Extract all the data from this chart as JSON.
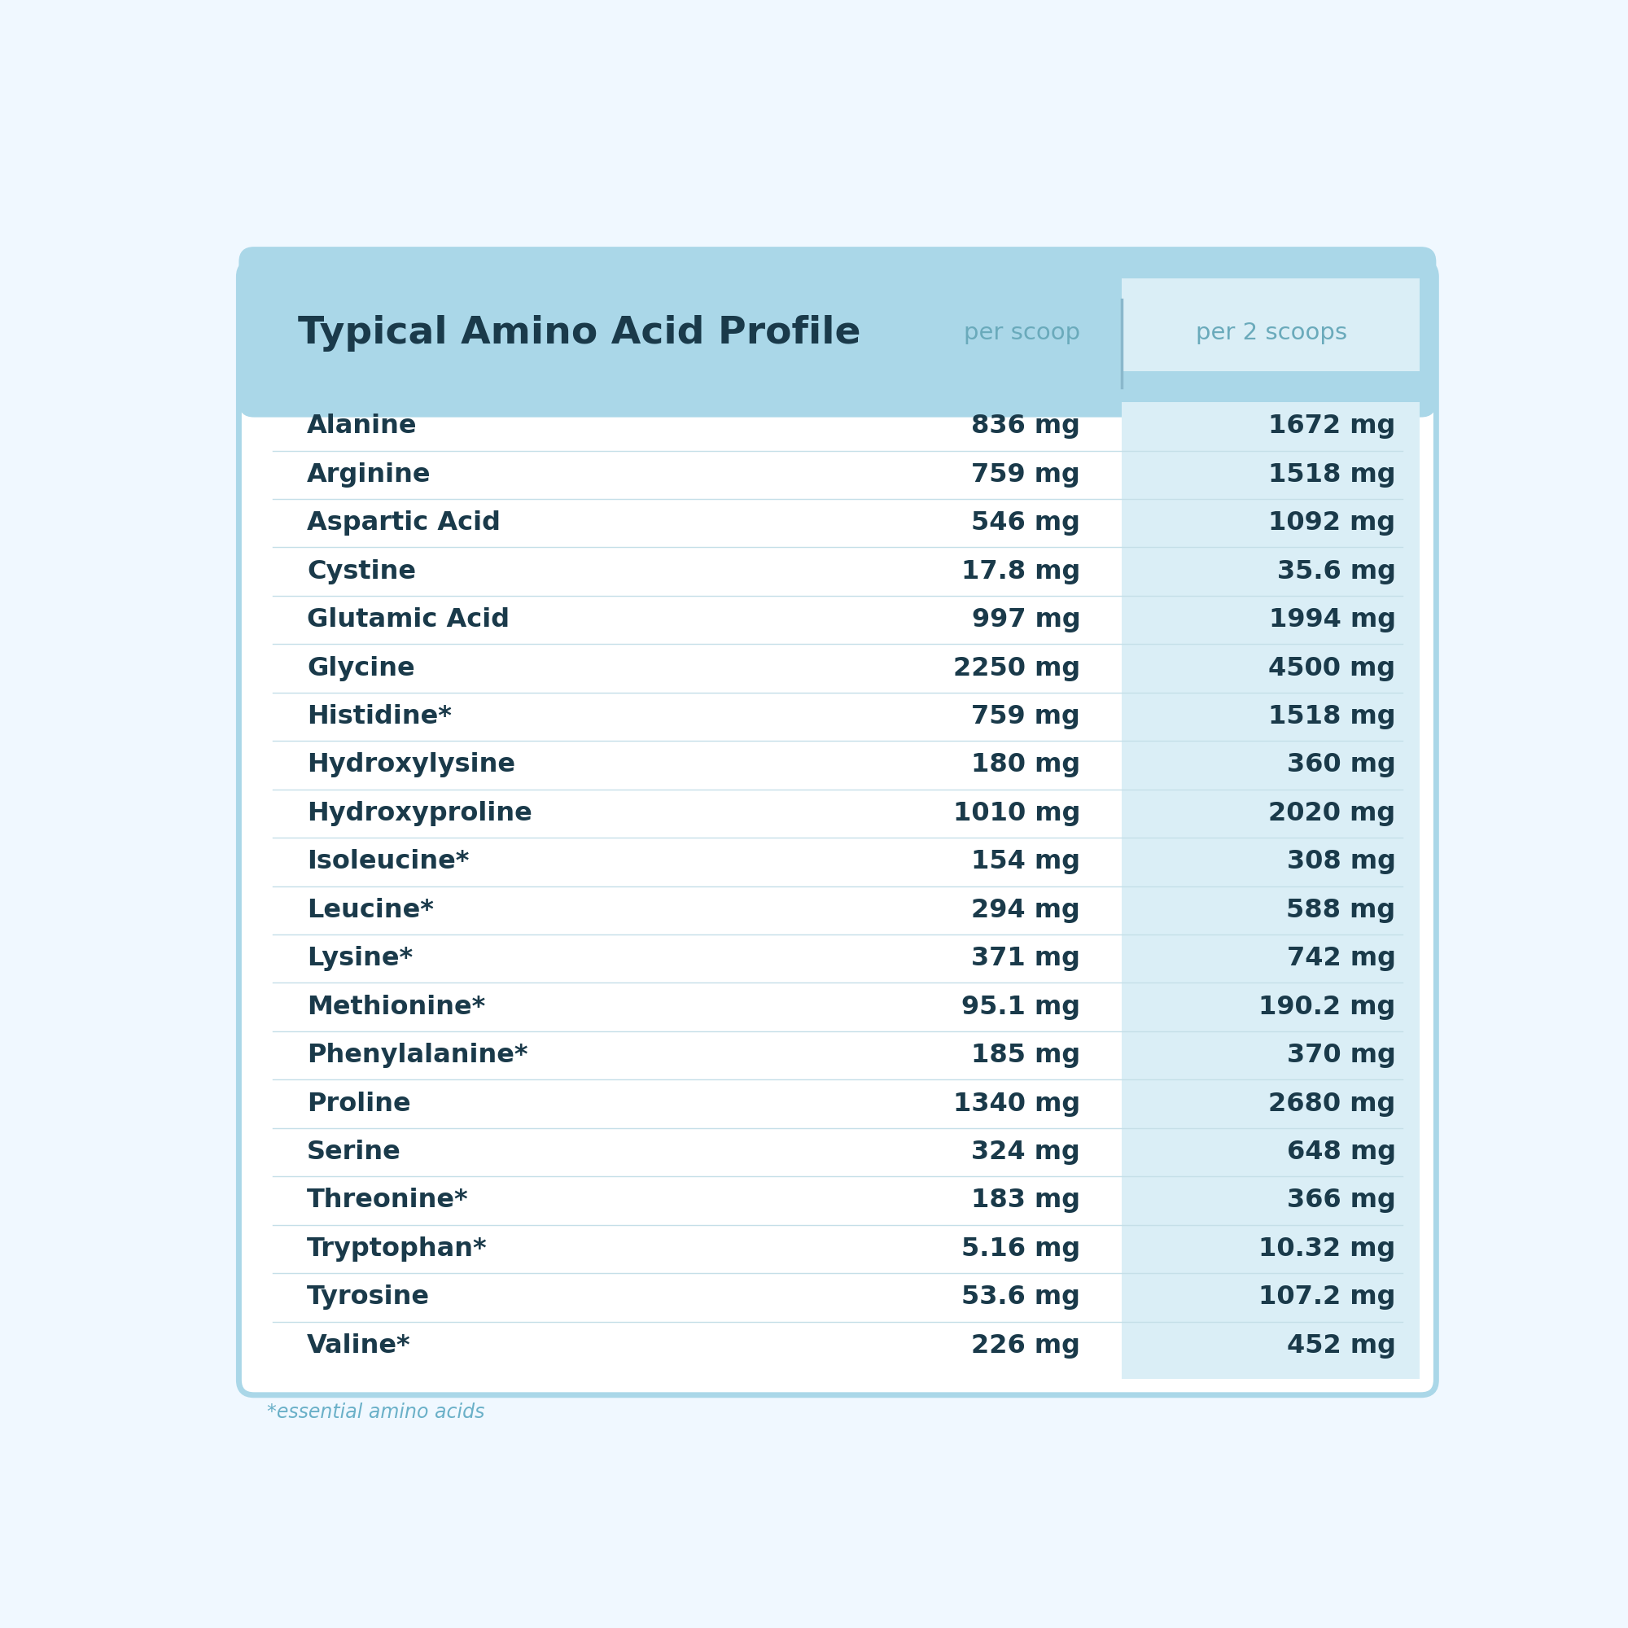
{
  "title": "Typical Amino Acid Profile",
  "col1_header": "per scoop",
  "col2_header": "per 2 scoops",
  "rows": [
    {
      "name": "Alanine",
      "val1": "836 mg",
      "val2": "1672 mg"
    },
    {
      "name": "Arginine",
      "val1": "759 mg",
      "val2": "1518 mg"
    },
    {
      "name": "Aspartic Acid",
      "val1": "546 mg",
      "val2": "1092 mg"
    },
    {
      "name": "Cystine",
      "val1": "17.8 mg",
      "val2": "35.6 mg"
    },
    {
      "name": "Glutamic Acid",
      "val1": "997 mg",
      "val2": "1994 mg"
    },
    {
      "name": "Glycine",
      "val1": "2250 mg",
      "val2": "4500 mg"
    },
    {
      "name": "Histidine*",
      "val1": "759 mg",
      "val2": "1518 mg"
    },
    {
      "name": "Hydroxylysine",
      "val1": "180 mg",
      "val2": "360 mg"
    },
    {
      "name": "Hydroxyproline",
      "val1": "1010 mg",
      "val2": "2020 mg"
    },
    {
      "name": "Isoleucine*",
      "val1": "154 mg",
      "val2": "308 mg"
    },
    {
      "name": "Leucine*",
      "val1": "294 mg",
      "val2": "588 mg"
    },
    {
      "name": "Lysine*",
      "val1": "371 mg",
      "val2": "742 mg"
    },
    {
      "name": "Methionine*",
      "val1": "95.1 mg",
      "val2": "190.2 mg"
    },
    {
      "name": "Phenylalanine*",
      "val1": "185 mg",
      "val2": "370 mg"
    },
    {
      "name": "Proline",
      "val1": "1340 mg",
      "val2": "2680 mg"
    },
    {
      "name": "Serine",
      "val1": "324 mg",
      "val2": "648 mg"
    },
    {
      "name": "Threonine*",
      "val1": "183 mg",
      "val2": "366 mg"
    },
    {
      "name": "Tryptophan*",
      "val1": "5.16 mg",
      "val2": "10.32 mg"
    },
    {
      "name": "Tyrosine",
      "val1": "53.6 mg",
      "val2": "107.2 mg"
    },
    {
      "name": "Valine*",
      "val1": "226 mg",
      "val2": "452 mg"
    }
  ],
  "footnote": "*essential amino acids",
  "bg_color": "#f0f8ff",
  "card_bg": "#ffffff",
  "header_bg": "#aad7e8",
  "col2_bg": "#daeef6",
  "row_line_color": "#c5dfe8",
  "title_color": "#1a3a4a",
  "header_text_color": "#6aaabb",
  "data_text_color": "#1a3a4a",
  "footnote_color": "#6ab0c8",
  "card_border_color": "#aad7e8",
  "divider_color": "#8ab8cc"
}
